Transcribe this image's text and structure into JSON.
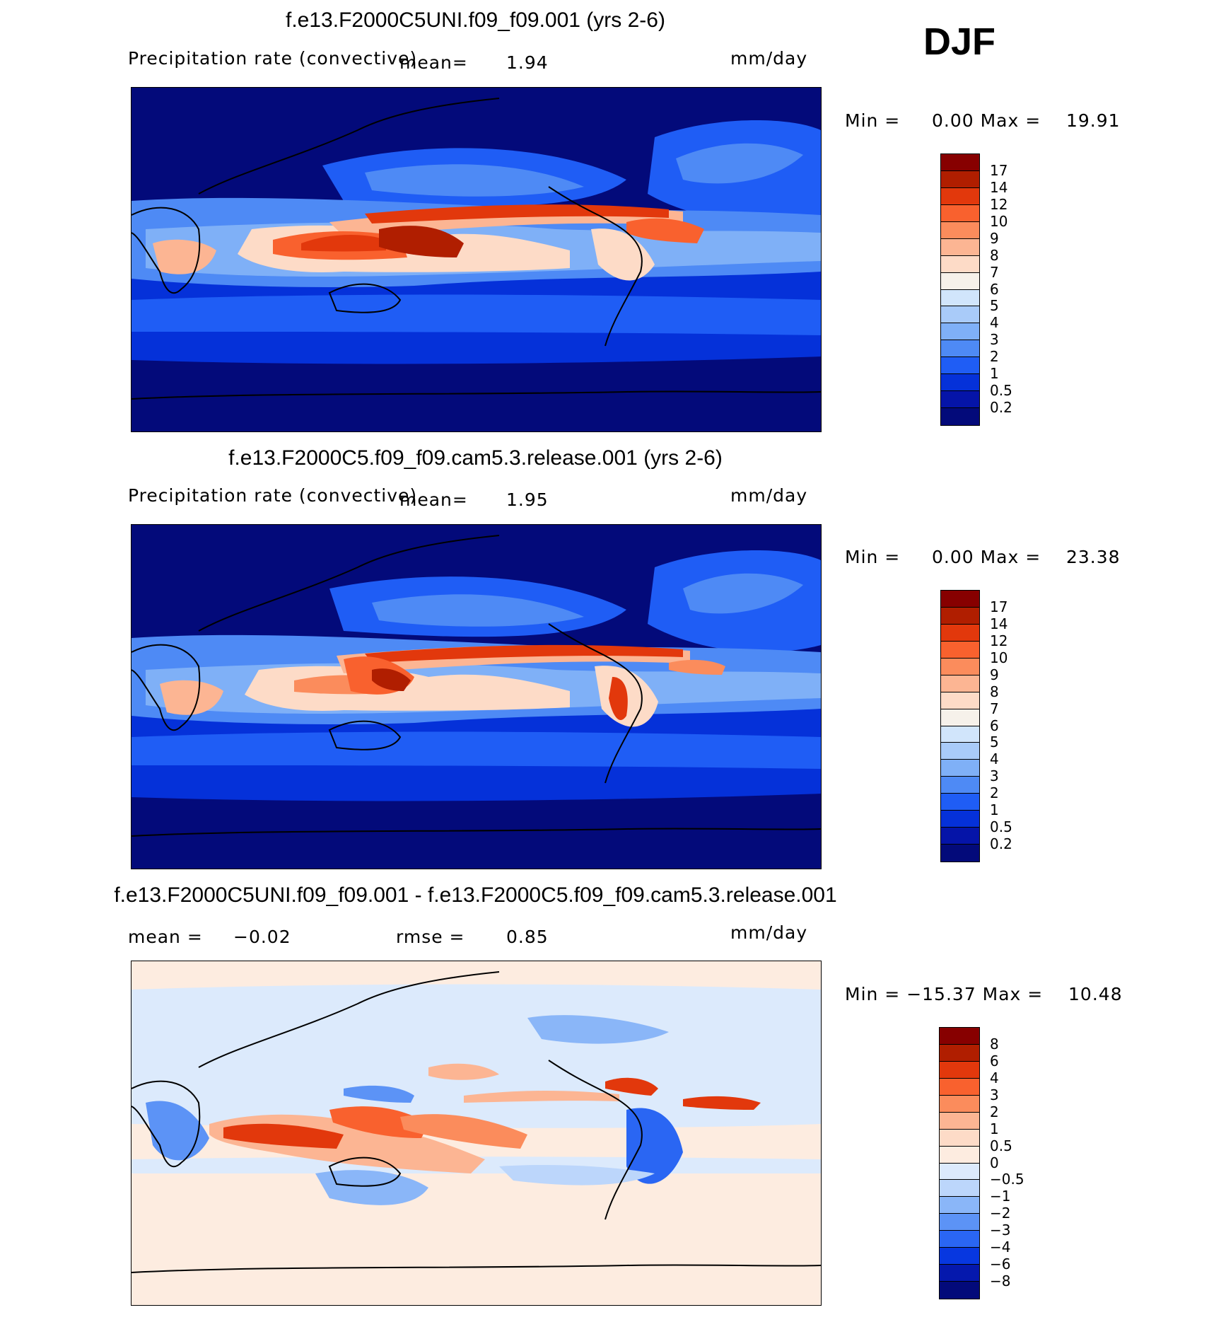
{
  "season": "DJF",
  "panels": [
    {
      "title": "f.e13.F2000C5UNI.f09_f09.001 (yrs 2-6)",
      "variable": "Precipitation rate (convective)",
      "mean_label": "mean=",
      "mean_value": "1.94",
      "units": "mm/day",
      "minmax_text": "Min =     0.00 Max =    19.91",
      "colorbar": {
        "levels": [
          "17",
          "14",
          "12",
          "10",
          "9",
          "8",
          "7",
          "6",
          "5",
          "4",
          "3",
          "2",
          "1",
          "0.5",
          "0.2"
        ],
        "colors": [
          "#870000",
          "#b01e00",
          "#e2380c",
          "#f9612e",
          "#fb8c5c",
          "#fcb593",
          "#fddbc7",
          "#f6f1ea",
          "#d1e5fb",
          "#a9cbf9",
          "#7fb0f7",
          "#4e8af5",
          "#1f5df5",
          "#0531d9",
          "#0514a8",
          "#030a7a"
        ]
      }
    },
    {
      "title": "f.e13.F2000C5.f09_f09.cam5.3.release.001 (yrs 2-6)",
      "variable": "Precipitation rate (convective)",
      "mean_label": "mean=",
      "mean_value": "1.95",
      "units": "mm/day",
      "minmax_text": "Min =     0.00 Max =    23.38",
      "colorbar": {
        "levels": [
          "17",
          "14",
          "12",
          "10",
          "9",
          "8",
          "7",
          "6",
          "5",
          "4",
          "3",
          "2",
          "1",
          "0.5",
          "0.2"
        ],
        "colors": [
          "#870000",
          "#b01e00",
          "#e2380c",
          "#f9612e",
          "#fb8c5c",
          "#fcb593",
          "#fddbc7",
          "#f6f1ea",
          "#d1e5fb",
          "#a9cbf9",
          "#7fb0f7",
          "#4e8af5",
          "#1f5df5",
          "#0531d9",
          "#0514a8",
          "#030a7a"
        ]
      }
    },
    {
      "title": "f.e13.F2000C5UNI.f09_f09.001 - f.e13.F2000C5.f09_f09.cam5.3.release.001",
      "mean_label": "mean =",
      "mean_value": "−0.02",
      "rmse_label": "rmse =",
      "rmse_value": "0.85",
      "units": "mm/day",
      "minmax_text": "Min = −15.37 Max =    10.48",
      "colorbar": {
        "levels": [
          "8",
          "6",
          "4",
          "3",
          "2",
          "1",
          "0.5",
          "0",
          "−0.5",
          "−1",
          "−2",
          "−3",
          "−4",
          "−6",
          "−8"
        ],
        "colors": [
          "#870000",
          "#b01e00",
          "#e2380c",
          "#f9612e",
          "#fb8c5c",
          "#fcb593",
          "#fddbc7",
          "#fdece0",
          "#dceafc",
          "#bcd6fb",
          "#8ab6f8",
          "#5c93f6",
          "#2a66f3",
          "#0737e0",
          "#0518ad",
          "#030a7a"
        ]
      }
    }
  ]
}
